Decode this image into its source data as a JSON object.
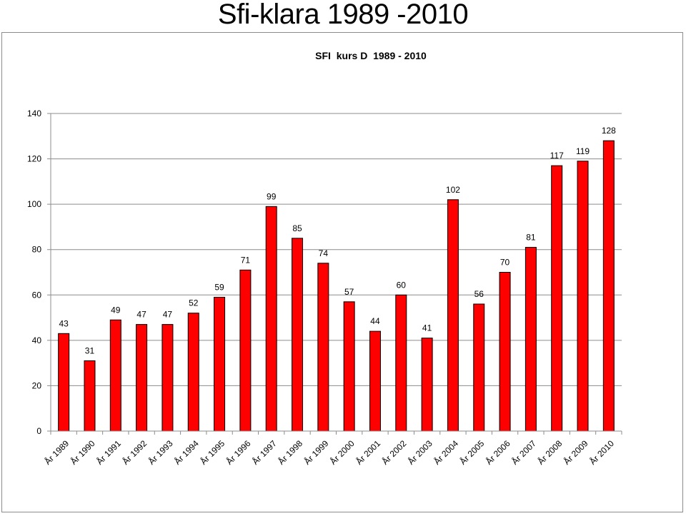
{
  "slide_title": "Sfi-klara 1989 -2010",
  "chart_data": {
    "type": "bar",
    "title": "SFI  kurs D  1989 - 2010",
    "categories": [
      "År 1989",
      "År 1990",
      "År 1991",
      "År 1992",
      "År 1993",
      "År 1994",
      "År 1995",
      "År 1996",
      "År 1997",
      "År 1998",
      "År 1999",
      "År 2000",
      "År 2001",
      "År 2002",
      "År 2003",
      "År 2004",
      "År 2005",
      "År 2006",
      "År 2007",
      "År 2008",
      "År 2009",
      "År 2010"
    ],
    "values": [
      43,
      31,
      49,
      47,
      47,
      52,
      59,
      71,
      99,
      85,
      74,
      57,
      44,
      60,
      41,
      102,
      56,
      70,
      81,
      117,
      119,
      128
    ],
    "ylim": [
      0,
      140
    ],
    "yticks": [
      0,
      20,
      40,
      60,
      80,
      100,
      120,
      140
    ],
    "grid": true,
    "legend": "none",
    "bar_color": "#ff0000",
    "bar_edge_color": "#000000"
  }
}
